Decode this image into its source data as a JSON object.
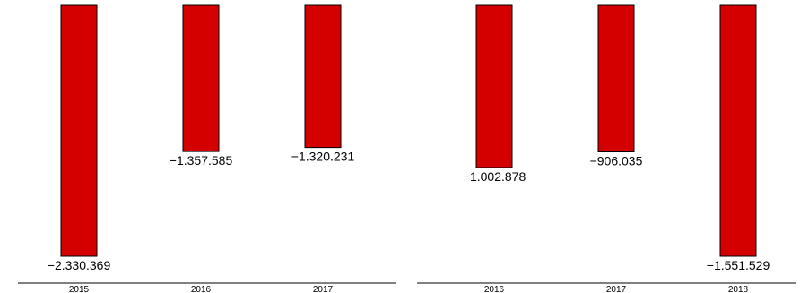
{
  "chart_data": [
    {
      "type": "bar",
      "categories": [
        "2015",
        "2016",
        "2017"
      ],
      "values": [
        -2330369,
        -1357585,
        -1320231
      ],
      "value_labels": [
        "−2.330.369",
        "−1.357.585",
        "−1.320.231"
      ],
      "ylim": [
        -2330369,
        0
      ],
      "grid": false,
      "bar_color": "#d40000",
      "edge_color": "#000000"
    },
    {
      "type": "bar",
      "categories": [
        "2016",
        "2017",
        "2018"
      ],
      "values": [
        -1002878,
        -906035,
        -1551529
      ],
      "value_labels": [
        "−1.002.878",
        "−906.035",
        "−1.551.529"
      ],
      "ylim": [
        -1551529,
        0
      ],
      "grid": false,
      "bar_color": "#d40000",
      "edge_color": "#000000"
    }
  ]
}
